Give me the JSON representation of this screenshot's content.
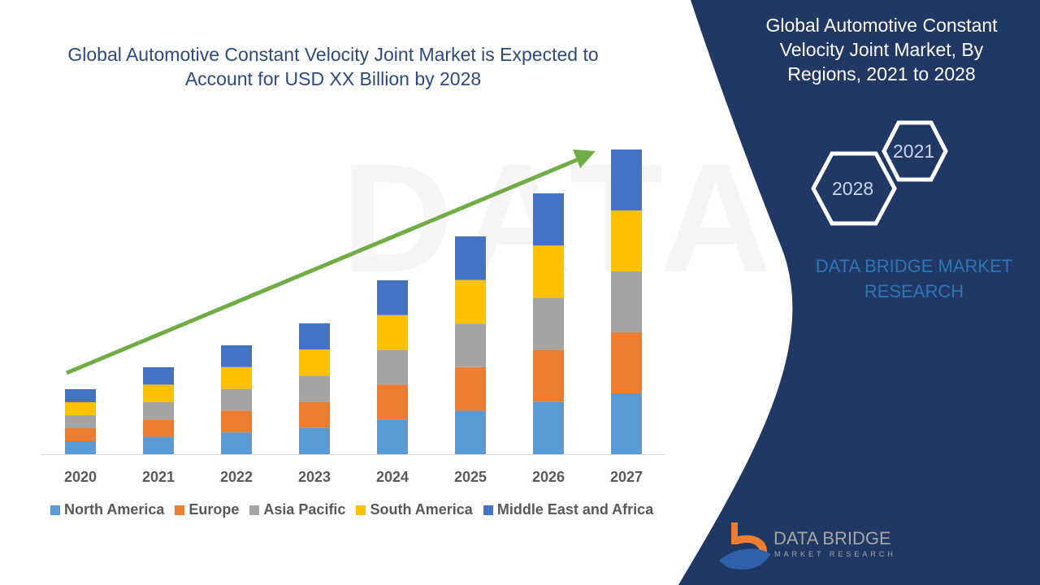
{
  "title": "Global Automotive Constant Velocity Joint Market is Expected to Account for USD XX Billion by 2028",
  "side_panel": {
    "title": "Global Automotive Constant Velocity Joint Market, By Regions, 2021 to 2028",
    "hex_years": [
      "2021",
      "2028"
    ],
    "brand": "DATA BRIDGE MARKET RESEARCH",
    "logo": {
      "name": "DATA BRIDGE",
      "sub": "MARKET RESEARCH"
    },
    "panel_color": "#1f3864"
  },
  "chart_data": {
    "type": "bar",
    "stacked": true,
    "title": "Global Automotive Constant Velocity Joint Market is Expected to Account for USD XX Billion by 2028",
    "xlabel": "",
    "ylabel": "",
    "y_axis_shown": false,
    "grid": false,
    "legend_position": "bottom",
    "trend_arrow": {
      "color": "#70ad47",
      "direction": "up"
    },
    "categories": [
      "2020",
      "2021",
      "2022",
      "2023",
      "2024",
      "2025",
      "2026",
      "2027"
    ],
    "series": [
      {
        "name": "North America",
        "color": "#5b9bd5",
        "values": [
          16,
          21.4,
          26.8,
          32.2,
          42.8,
          53.6,
          64.2,
          75
        ]
      },
      {
        "name": "Europe",
        "color": "#ed7d31",
        "values": [
          16,
          21.4,
          26.8,
          32.2,
          42.8,
          53.6,
          64.2,
          75
        ]
      },
      {
        "name": "Asia Pacific",
        "color": "#a5a5a5",
        "values": [
          16,
          21.4,
          26.8,
          32.2,
          42.8,
          53.6,
          64.2,
          75
        ]
      },
      {
        "name": "South America",
        "color": "#ffc000",
        "values": [
          16,
          21.4,
          26.8,
          32.2,
          42.8,
          53.6,
          64.2,
          75
        ]
      },
      {
        "name": "Middle East and Africa",
        "color": "#4472c4",
        "values": [
          16,
          21.4,
          26.8,
          32.2,
          42.8,
          53.6,
          64.2,
          75
        ]
      }
    ]
  }
}
